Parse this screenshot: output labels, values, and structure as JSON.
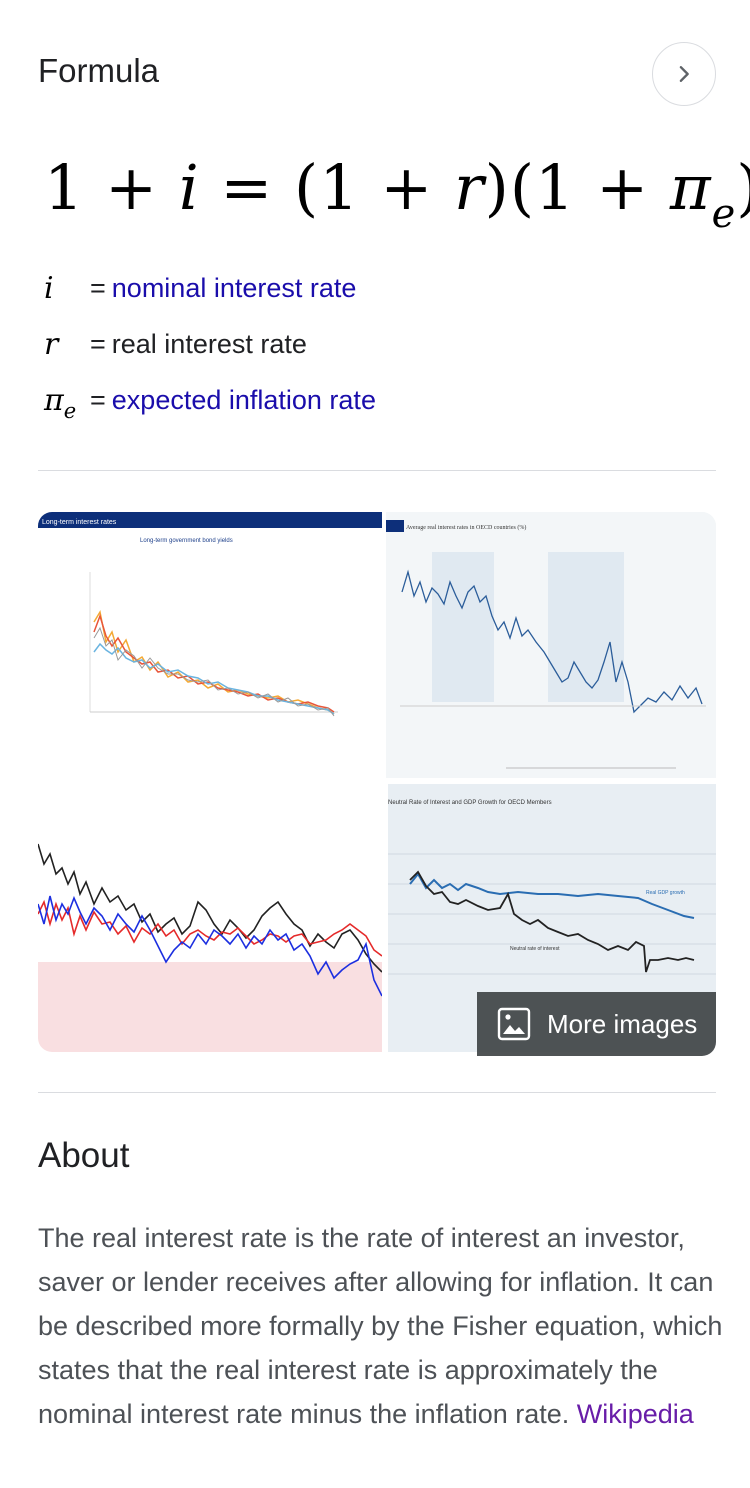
{
  "formula": {
    "title": "Formula",
    "equation": {
      "lhs": "1 + ",
      "i": "i",
      "mid": " = (1 + ",
      "r": "r",
      "mid2": ")(1 + ",
      "pi": "π",
      "e": "e",
      "end": ")"
    },
    "variables": [
      {
        "symbol": "i",
        "subscript": "",
        "equals": "=",
        "label": "nominal interest rate",
        "is_link": true
      },
      {
        "symbol": "r",
        "subscript": "",
        "equals": "=",
        "label": "real interest rate",
        "is_link": false
      },
      {
        "symbol": "π",
        "subscript": "e",
        "equals": "=",
        "label": "expected inflation rate",
        "is_link": true
      }
    ]
  },
  "images": {
    "tiles": [
      {
        "caption": "Long-term interest rates",
        "subtitle": "Long-term government bond yields"
      },
      {
        "caption": "Average real interest rates in OECD countries (%)"
      },
      {
        "caption": ""
      },
      {
        "caption": "Neutral Rate of Interest and GDP Growth for OECD Members",
        "series": [
          "Real GDP growth",
          "Neutral rate of interest"
        ]
      }
    ],
    "more_label": "More images"
  },
  "about": {
    "title": "About",
    "text": "The real interest rate is the rate of interest an investor, saver or lender receives after allowing for inflation. It can be described more formally by the Fisher equation, which states that the real interest rate is approximately the nominal interest rate minus the inflation rate. ",
    "source_link": "Wikipedia"
  },
  "colors": {
    "link": "#1a0dab",
    "visited_link": "#681da8",
    "text": "#202124",
    "secondary_text": "#4d5156",
    "divider": "#dadce0"
  }
}
